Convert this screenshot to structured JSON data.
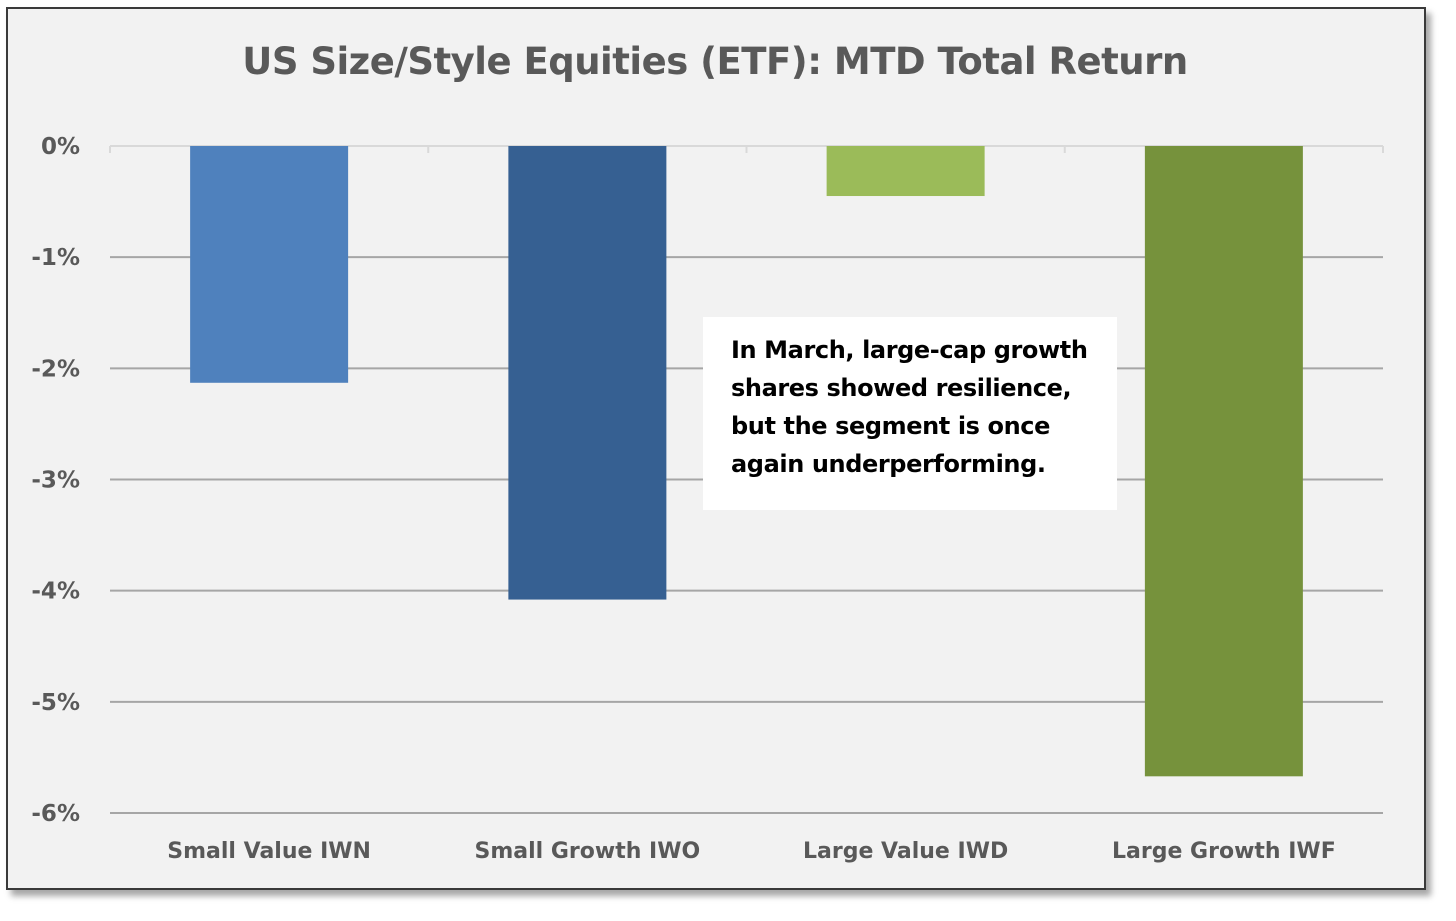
{
  "chart_data": {
    "type": "bar",
    "title": "US Size/Style Equities (ETF): MTD Total Return",
    "xlabel": "",
    "ylabel": "",
    "categories": [
      "Small Value IWN",
      "Small Growth IWO",
      "Large Value IWD",
      "Large Growth IWF"
    ],
    "values": [
      -2.13,
      -4.08,
      -0.45,
      -5.67
    ],
    "bar_colors": [
      "#4f81bd",
      "#366092",
      "#9bbb59",
      "#76923c"
    ],
    "ylim": [
      -6,
      0
    ],
    "yticks": [
      0,
      -1,
      -2,
      -3,
      -4,
      -5,
      -6
    ],
    "ytick_labels": [
      "0%",
      "-1%",
      "-2%",
      "-3%",
      "-4%",
      "-5%",
      "-6%"
    ],
    "grid": true,
    "legend": "none",
    "annotation": "In March, large-cap growth shares showed resilience, but the segment is once again underperforming."
  }
}
